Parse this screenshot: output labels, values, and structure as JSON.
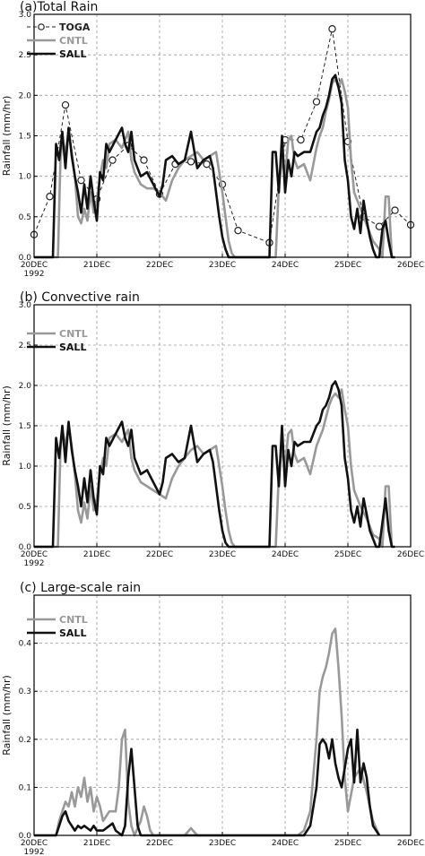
{
  "colors": {
    "TOGA": "#222222",
    "CNTL": "#999999",
    "SALL": "#111111",
    "grid": "#9a9a9a",
    "axis": "#000000"
  },
  "chart_data": [
    {
      "type": "line",
      "title": "(a)Total Rain",
      "ylabel": "Rainfall (mm/hr)",
      "ylim": [
        0,
        3
      ],
      "yticks": [
        0,
        0.5,
        1,
        1.5,
        2,
        2.5,
        3
      ],
      "ytick_labels": [
        "0.0",
        "0.5",
        "1.0",
        "1.5",
        "2.0",
        "2.5",
        "3.0"
      ],
      "xlim": [
        0,
        6
      ],
      "xticks": [
        0,
        1,
        2,
        3,
        4,
        5,
        6
      ],
      "xtick_labels": [
        "20DEC",
        "21DEC",
        "22DEC",
        "23DEC",
        "24DEC",
        "25DEC",
        "26DEC"
      ],
      "xtick_year": "1992",
      "grid": true,
      "legend_position": "top-left",
      "series": [
        {
          "name": "TOGA",
          "style": "dashed-circle",
          "color_key": "TOGA",
          "x": [
            0,
            0.25,
            0.5,
            0.75,
            1.0,
            1.25,
            1.5,
            1.75,
            2.0,
            2.25,
            2.5,
            2.75,
            3.0,
            3.25,
            3.75,
            4.0,
            4.25,
            4.5,
            4.75,
            5.0,
            5.25,
            5.5,
            5.75,
            6.0
          ],
          "y": [
            0.28,
            0.75,
            1.88,
            0.95,
            0.72,
            1.2,
            1.38,
            1.2,
            0.78,
            1.15,
            1.18,
            1.15,
            0.9,
            0.33,
            0.18,
            1.45,
            1.45,
            1.92,
            2.82,
            1.43,
            0.5,
            0.38,
            0.58,
            0.4
          ]
        },
        {
          "name": "CNTL",
          "style": "solid",
          "color_key": "CNTL",
          "x": [
            0.0,
            0.38,
            0.42,
            0.45,
            0.5,
            0.55,
            0.6,
            0.65,
            0.7,
            0.75,
            0.8,
            0.85,
            0.9,
            0.95,
            1.0,
            1.05,
            1.1,
            1.15,
            1.2,
            1.3,
            1.4,
            1.5,
            1.55,
            1.6,
            1.7,
            1.8,
            1.9,
            2.0,
            2.1,
            2.2,
            2.3,
            2.4,
            2.5,
            2.6,
            2.7,
            2.8,
            2.9,
            3.0,
            3.05,
            3.1,
            3.15,
            3.2,
            3.85,
            3.9,
            3.95,
            4.0,
            4.05,
            4.1,
            4.15,
            4.2,
            4.3,
            4.4,
            4.5,
            4.55,
            4.6,
            4.65,
            4.7,
            4.75,
            4.8,
            4.85,
            4.9,
            4.95,
            5.0,
            5.05,
            5.1,
            5.2,
            5.3,
            5.4,
            5.5,
            5.55,
            5.6,
            5.65,
            5.7
          ],
          "y": [
            0,
            0,
            1.2,
            1.45,
            1.3,
            1.55,
            1.3,
            1.0,
            0.5,
            0.42,
            0.6,
            0.45,
            0.8,
            0.55,
            0.7,
            1.0,
            1.2,
            1.1,
            1.4,
            1.45,
            1.35,
            1.55,
            1.2,
            1.05,
            0.9,
            0.85,
            0.85,
            0.8,
            0.7,
            0.95,
            1.1,
            1.2,
            1.25,
            1.3,
            1.2,
            1.25,
            1.3,
            0.8,
            0.5,
            0.2,
            0.05,
            0,
            0,
            0.9,
            1.2,
            1.0,
            1.45,
            1.5,
            1.2,
            1.1,
            1.15,
            0.95,
            1.35,
            1.5,
            1.6,
            1.8,
            1.95,
            2.15,
            2.2,
            2.1,
            2.2,
            2.05,
            1.85,
            1.2,
            0.8,
            0.6,
            0.4,
            0.2,
            0.1,
            0.0,
            0.75,
            0.75,
            0.0
          ]
        },
        {
          "name": "SALL",
          "style": "solid",
          "color_key": "SALL",
          "x": [
            0.0,
            0.3,
            0.35,
            0.4,
            0.45,
            0.5,
            0.55,
            0.6,
            0.65,
            0.7,
            0.75,
            0.8,
            0.85,
            0.9,
            0.95,
            1.0,
            1.05,
            1.1,
            1.15,
            1.2,
            1.3,
            1.4,
            1.45,
            1.5,
            1.55,
            1.6,
            1.7,
            1.8,
            1.9,
            2.0,
            2.05,
            2.1,
            2.2,
            2.3,
            2.4,
            2.5,
            2.6,
            2.7,
            2.8,
            2.85,
            2.9,
            2.95,
            3.0,
            3.05,
            3.1,
            3.7,
            3.75,
            3.8,
            3.85,
            3.9,
            3.95,
            4.0,
            4.05,
            4.1,
            4.15,
            4.2,
            4.3,
            4.4,
            4.5,
            4.55,
            4.6,
            4.65,
            4.7,
            4.75,
            4.8,
            4.85,
            4.9,
            4.95,
            5.0,
            5.05,
            5.1,
            5.15,
            5.2,
            5.25,
            5.3,
            5.35,
            5.4,
            5.45,
            5.5,
            5.55,
            5.6,
            5.65,
            5.7,
            5.75
          ],
          "y": [
            0,
            0,
            1.4,
            1.2,
            1.55,
            1.1,
            1.6,
            1.25,
            1.0,
            0.8,
            0.55,
            0.9,
            0.6,
            1.0,
            0.7,
            0.45,
            1.05,
            0.95,
            1.4,
            1.3,
            1.45,
            1.6,
            1.4,
            1.3,
            1.55,
            1.2,
            1.0,
            1.05,
            0.9,
            0.75,
            0.9,
            1.2,
            1.25,
            1.15,
            1.2,
            1.55,
            1.1,
            1.2,
            1.25,
            1.1,
            0.8,
            0.5,
            0.25,
            0.1,
            0,
            0,
            0.0,
            1.3,
            1.3,
            0.8,
            1.5,
            0.8,
            1.2,
            1.0,
            1.3,
            1.25,
            1.3,
            1.3,
            1.55,
            1.6,
            1.75,
            1.85,
            2.0,
            2.2,
            2.25,
            2.1,
            1.9,
            1.2,
            0.95,
            0.5,
            0.35,
            0.6,
            0.3,
            0.7,
            0.45,
            0.25,
            0.1,
            0.0,
            0.0,
            0.35,
            0.45,
            0.2,
            0.0,
            0.0
          ]
        }
      ]
    },
    {
      "type": "line",
      "title": "(b)  Convective rain",
      "ylabel": "Rainfall (mm/hr)",
      "ylim": [
        0,
        3
      ],
      "yticks": [
        0,
        0.5,
        1,
        1.5,
        2,
        2.5,
        3
      ],
      "ytick_labels": [
        "0.0",
        "0.5",
        "1.0",
        "1.5",
        "2.0",
        "2.5",
        "3.0"
      ],
      "xlim": [
        0,
        6
      ],
      "xticks": [
        0,
        1,
        2,
        3,
        4,
        5,
        6
      ],
      "xtick_labels": [
        "20DEC",
        "21DEC",
        "22DEC",
        "23DEC",
        "24DEC",
        "25DEC",
        "26DEC"
      ],
      "xtick_year": "1992",
      "grid": true,
      "legend_position": "top-left",
      "series": [
        {
          "name": "CNTL",
          "style": "solid",
          "color_key": "CNTL",
          "x": [
            0.0,
            0.38,
            0.42,
            0.45,
            0.5,
            0.55,
            0.6,
            0.65,
            0.7,
            0.75,
            0.8,
            0.85,
            0.9,
            0.95,
            1.0,
            1.05,
            1.1,
            1.15,
            1.2,
            1.3,
            1.4,
            1.5,
            1.55,
            1.6,
            1.7,
            1.8,
            1.9,
            2.0,
            2.1,
            2.2,
            2.3,
            2.4,
            2.5,
            2.6,
            2.7,
            2.8,
            2.9,
            3.0,
            3.05,
            3.1,
            3.15,
            3.2,
            3.85,
            3.9,
            3.95,
            4.0,
            4.05,
            4.1,
            4.15,
            4.2,
            4.3,
            4.4,
            4.5,
            4.55,
            4.6,
            4.65,
            4.7,
            4.75,
            4.8,
            4.85,
            4.9,
            4.95,
            5.0,
            5.05,
            5.1,
            5.2,
            5.3,
            5.4,
            5.5,
            5.55,
            5.6,
            5.65,
            5.7
          ],
          "y": [
            0,
            0,
            1.2,
            1.45,
            1.25,
            1.5,
            1.25,
            0.9,
            0.45,
            0.3,
            0.55,
            0.35,
            0.75,
            0.45,
            0.6,
            0.9,
            1.1,
            1.0,
            1.35,
            1.4,
            1.3,
            1.45,
            1.1,
            0.95,
            0.8,
            0.75,
            0.7,
            0.65,
            0.6,
            0.85,
            1.0,
            1.1,
            1.2,
            1.25,
            1.15,
            1.2,
            1.25,
            0.75,
            0.45,
            0.2,
            0.05,
            0,
            0,
            0.9,
            1.2,
            1.0,
            1.4,
            1.45,
            1.15,
            1.05,
            1.1,
            0.9,
            1.25,
            1.35,
            1.45,
            1.6,
            1.75,
            1.85,
            1.9,
            1.85,
            1.95,
            1.7,
            1.5,
            1.0,
            0.7,
            0.5,
            0.35,
            0.15,
            0.1,
            0.0,
            0.75,
            0.75,
            0.0
          ]
        },
        {
          "name": "SALL",
          "style": "solid",
          "color_key": "SALL",
          "x": [
            0.0,
            0.3,
            0.35,
            0.4,
            0.45,
            0.5,
            0.55,
            0.6,
            0.65,
            0.7,
            0.75,
            0.8,
            0.85,
            0.9,
            0.95,
            1.0,
            1.05,
            1.1,
            1.15,
            1.2,
            1.3,
            1.4,
            1.45,
            1.5,
            1.55,
            1.6,
            1.7,
            1.8,
            1.9,
            2.0,
            2.05,
            2.1,
            2.2,
            2.3,
            2.4,
            2.5,
            2.6,
            2.7,
            2.8,
            2.85,
            2.9,
            2.95,
            3.0,
            3.05,
            3.1,
            3.7,
            3.75,
            3.8,
            3.85,
            3.9,
            3.95,
            4.0,
            4.05,
            4.1,
            4.15,
            4.2,
            4.3,
            4.4,
            4.5,
            4.55,
            4.6,
            4.65,
            4.7,
            4.75,
            4.8,
            4.85,
            4.9,
            4.95,
            5.0,
            5.05,
            5.1,
            5.15,
            5.2,
            5.25,
            5.3,
            5.35,
            5.4,
            5.45,
            5.5,
            5.55,
            5.6,
            5.65,
            5.7,
            5.75
          ],
          "y": [
            0,
            0,
            1.35,
            1.1,
            1.5,
            1.05,
            1.55,
            1.2,
            0.95,
            0.75,
            0.5,
            0.85,
            0.55,
            0.95,
            0.6,
            0.4,
            1.0,
            0.9,
            1.35,
            1.25,
            1.4,
            1.55,
            1.35,
            1.25,
            1.45,
            1.1,
            0.9,
            0.95,
            0.8,
            0.65,
            0.8,
            1.1,
            1.15,
            1.05,
            1.1,
            1.5,
            1.05,
            1.15,
            1.2,
            1.05,
            0.75,
            0.45,
            0.2,
            0.05,
            0,
            0,
            0.0,
            1.25,
            1.25,
            0.75,
            1.5,
            0.75,
            1.2,
            1.0,
            1.3,
            1.25,
            1.3,
            1.3,
            1.5,
            1.55,
            1.7,
            1.75,
            1.85,
            2.0,
            2.05,
            1.95,
            1.75,
            1.1,
            0.85,
            0.45,
            0.3,
            0.5,
            0.25,
            0.6,
            0.4,
            0.2,
            0.1,
            0.0,
            0.0,
            0.3,
            0.6,
            0.2,
            0.0,
            0.0
          ]
        }
      ]
    },
    {
      "type": "line",
      "title": "(c)  Large-scale rain",
      "ylabel": "Rainfall (mm/hr)",
      "ylim": [
        0,
        0.5
      ],
      "yticks": [
        0,
        0.1,
        0.2,
        0.3,
        0.4
      ],
      "ytick_labels": [
        "0.0",
        "0.1",
        "0.2",
        "0.3",
        "0.4"
      ],
      "xlim": [
        0,
        6
      ],
      "xticks": [
        0,
        1,
        2,
        3,
        4,
        5,
        6
      ],
      "xtick_labels": [
        "20DEC",
        "21DEC",
        "22DEC",
        "23DEC",
        "24DEC",
        "25DEC",
        "26DEC"
      ],
      "xtick_year": "1992",
      "grid": true,
      "legend_position": "top-left",
      "series": [
        {
          "name": "CNTL",
          "style": "solid",
          "color_key": "CNTL",
          "x": [
            0.0,
            0.35,
            0.4,
            0.45,
            0.5,
            0.55,
            0.6,
            0.65,
            0.7,
            0.75,
            0.8,
            0.85,
            0.9,
            0.95,
            1.0,
            1.05,
            1.1,
            1.2,
            1.3,
            1.35,
            1.4,
            1.45,
            1.5,
            1.55,
            1.6,
            1.7,
            1.75,
            1.8,
            1.85,
            1.9,
            2.4,
            2.5,
            2.6,
            4.2,
            4.3,
            4.4,
            4.5,
            4.55,
            4.6,
            4.65,
            4.7,
            4.75,
            4.8,
            4.85,
            4.9,
            4.95,
            5.0,
            5.1,
            5.2,
            5.3,
            5.4,
            5.5
          ],
          "y": [
            0,
            0,
            0.03,
            0.05,
            0.07,
            0.06,
            0.09,
            0.06,
            0.1,
            0.08,
            0.12,
            0.07,
            0.1,
            0.05,
            0.08,
            0.06,
            0.03,
            0.05,
            0.05,
            0.1,
            0.2,
            0.22,
            0.07,
            0.02,
            0.0,
            0.03,
            0.06,
            0.04,
            0.01,
            0.0,
            0.0,
            0.015,
            0.0,
            0.0,
            0.01,
            0.05,
            0.2,
            0.3,
            0.33,
            0.35,
            0.38,
            0.42,
            0.43,
            0.35,
            0.25,
            0.12,
            0.05,
            0.12,
            0.14,
            0.09,
            0.03,
            0.0
          ]
        },
        {
          "name": "SALL",
          "style": "solid",
          "color_key": "SALL",
          "x": [
            0.0,
            0.35,
            0.4,
            0.45,
            0.5,
            0.55,
            0.6,
            0.65,
            0.7,
            0.75,
            0.8,
            0.85,
            0.9,
            0.95,
            1.0,
            1.1,
            1.2,
            1.25,
            1.3,
            1.4,
            1.45,
            1.5,
            1.55,
            1.6,
            1.65,
            1.7,
            4.3,
            4.4,
            4.5,
            4.55,
            4.6,
            4.65,
            4.7,
            4.75,
            4.8,
            4.85,
            4.9,
            4.95,
            5.0,
            5.05,
            5.1,
            5.15,
            5.2,
            5.25,
            5.3,
            5.35,
            5.4,
            5.5
          ],
          "y": [
            0,
            0,
            0.02,
            0.04,
            0.05,
            0.03,
            0.02,
            0.01,
            0.02,
            0.015,
            0.02,
            0.015,
            0.01,
            0.02,
            0.01,
            0.01,
            0.02,
            0.025,
            0.01,
            0.0,
            0.02,
            0.12,
            0.18,
            0.1,
            0.02,
            0.0,
            0.0,
            0.02,
            0.1,
            0.19,
            0.2,
            0.19,
            0.16,
            0.2,
            0.15,
            0.12,
            0.1,
            0.14,
            0.18,
            0.2,
            0.11,
            0.22,
            0.11,
            0.15,
            0.12,
            0.06,
            0.02,
            0.0
          ]
        }
      ]
    }
  ]
}
